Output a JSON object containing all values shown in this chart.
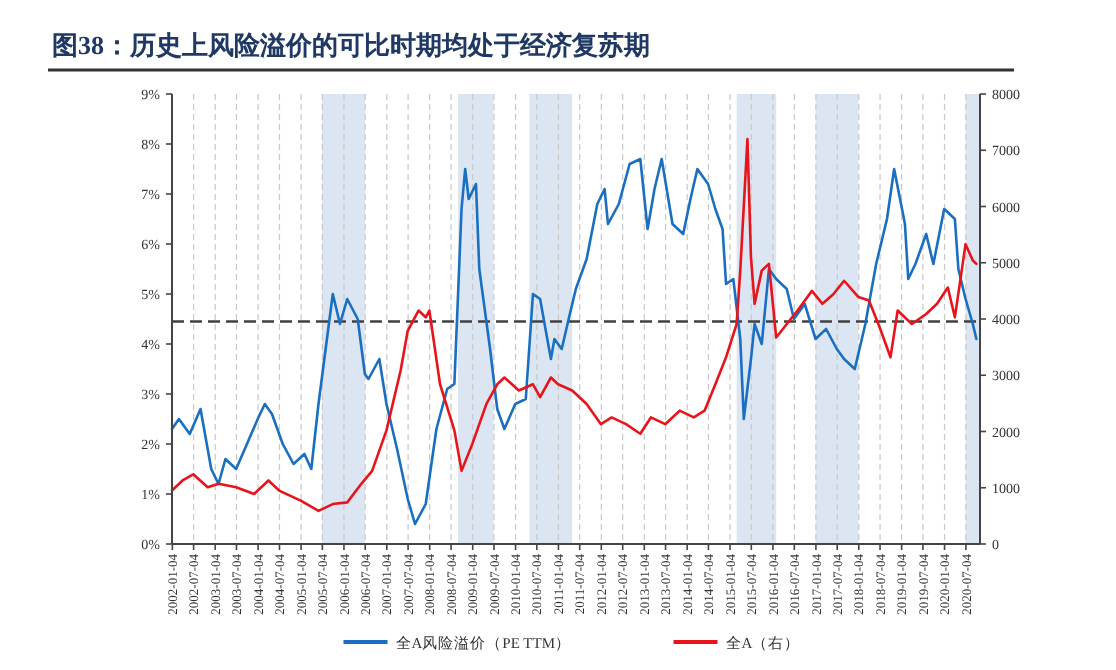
{
  "chart_data": {
    "type": "line",
    "title": "图38：历史上风险溢价的可比时期均处于经济复苏期",
    "xlim": [
      "2002-01-01",
      "2020-11-01"
    ],
    "xticks": [
      "2002-01-04",
      "2002-07-04",
      "2003-01-04",
      "2003-07-04",
      "2004-01-04",
      "2004-07-04",
      "2005-01-04",
      "2005-07-04",
      "2006-01-04",
      "2006-07-04",
      "2007-01-04",
      "2007-07-04",
      "2008-01-04",
      "2008-07-04",
      "2009-01-04",
      "2009-07-04",
      "2010-01-04",
      "2010-07-04",
      "2011-01-04",
      "2011-07-04",
      "2012-01-04",
      "2012-07-04",
      "2013-01-04",
      "2013-07-04",
      "2014-01-04",
      "2014-07-04",
      "2015-01-04",
      "2015-07-04",
      "2016-01-04",
      "2016-07-04",
      "2017-01-04",
      "2017-07-04",
      "2018-01-04",
      "2018-07-04",
      "2019-01-04",
      "2019-07-04",
      "2020-01-04",
      "2020-07-04"
    ],
    "ylim": [
      0,
      9
    ],
    "yticks": [
      {
        "value": 0,
        "label": "0%"
      },
      {
        "value": 1,
        "label": "1%"
      },
      {
        "value": 2,
        "label": "2%"
      },
      {
        "value": 3,
        "label": "3%"
      },
      {
        "value": 4,
        "label": "4%"
      },
      {
        "value": 5,
        "label": "5%"
      },
      {
        "value": 6,
        "label": "6%"
      },
      {
        "value": 7,
        "label": "7%"
      },
      {
        "value": 8,
        "label": "8%"
      },
      {
        "value": 9,
        "label": "9%"
      }
    ],
    "y2lim": [
      0,
      8000
    ],
    "y2ticks": [
      0,
      1000,
      2000,
      3000,
      4000,
      5000,
      6000,
      7000,
      8000
    ],
    "grid": "x",
    "legend": "bottom",
    "bands": [
      {
        "axis": "x",
        "from": "2005-07",
        "to": "2006-07",
        "color": "#dce6f2"
      },
      {
        "axis": "x",
        "from": "2008-09",
        "to": "2009-07",
        "color": "#dce6f2"
      },
      {
        "axis": "x",
        "from": "2010-05",
        "to": "2011-05",
        "color": "#dce6f2"
      },
      {
        "axis": "x",
        "from": "2015-03",
        "to": "2016-02",
        "color": "#dce6f2"
      },
      {
        "axis": "x",
        "from": "2017-01",
        "to": "2018-01",
        "color": "#dce6f2"
      },
      {
        "axis": "x",
        "from": "2020-07",
        "to": "2020-11",
        "color": "#dce6f2"
      }
    ],
    "ref_lines": [
      {
        "axis": "y",
        "value": 4.45,
        "color": "#404040",
        "line_style": "dashed"
      }
    ],
    "series": [
      {
        "name": "全A风险溢价（PE TTM）",
        "color": "#1a6fc0",
        "x": [
          "2002-01",
          "2002-03",
          "2002-06",
          "2002-09",
          "2002-12",
          "2003-02",
          "2003-04",
          "2003-07",
          "2003-10",
          "2004-01",
          "2004-03",
          "2004-05",
          "2004-08",
          "2004-11",
          "2005-02",
          "2005-04",
          "2005-06",
          "2005-08",
          "2005-10",
          "2005-12",
          "2006-02",
          "2006-05",
          "2006-07",
          "2006-08",
          "2006-11",
          "2007-01",
          "2007-04",
          "2007-07",
          "2007-09",
          "2007-12",
          "2008-03",
          "2008-06",
          "2008-08",
          "2008-10",
          "2008-11",
          "2008-12",
          "2009-02",
          "2009-03",
          "2009-06",
          "2009-08",
          "2009-10",
          "2010-01",
          "2010-04",
          "2010-06",
          "2010-08",
          "2010-10",
          "2010-11",
          "2010-12",
          "2011-02",
          "2011-04",
          "2011-06",
          "2011-09",
          "2011-12",
          "2012-02",
          "2012-03",
          "2012-06",
          "2012-09",
          "2012-12",
          "2013-02",
          "2013-04",
          "2013-06",
          "2013-09",
          "2013-12",
          "2014-02",
          "2014-04",
          "2014-07",
          "2014-09",
          "2014-11",
          "2014-12",
          "2015-02",
          "2015-04",
          "2015-05",
          "2015-07",
          "2015-08",
          "2015-10",
          "2015-12",
          "2016-02",
          "2016-05",
          "2016-07",
          "2016-10",
          "2017-01",
          "2017-04",
          "2017-07",
          "2017-09",
          "2017-12",
          "2018-03",
          "2018-06",
          "2018-09",
          "2018-11",
          "2019-02",
          "2019-03",
          "2019-05",
          "2019-08",
          "2019-10",
          "2020-01",
          "2020-04",
          "2020-05",
          "2020-07",
          "2020-09",
          "2020-10"
        ],
        "values": [
          2.3,
          2.5,
          2.2,
          2.7,
          1.5,
          1.2,
          1.7,
          1.5,
          2.0,
          2.5,
          2.8,
          2.6,
          2.0,
          1.6,
          1.8,
          1.5,
          2.8,
          3.9,
          5.0,
          4.4,
          4.9,
          4.5,
          3.4,
          3.3,
          3.7,
          2.8,
          1.9,
          0.9,
          0.4,
          0.8,
          2.3,
          3.1,
          3.2,
          6.7,
          7.5,
          6.9,
          7.2,
          5.5,
          3.9,
          2.7,
          2.3,
          2.8,
          2.9,
          5.0,
          4.9,
          4.1,
          3.7,
          4.1,
          3.9,
          4.5,
          5.1,
          5.7,
          6.8,
          7.1,
          6.4,
          6.8,
          7.6,
          7.7,
          6.3,
          7.1,
          7.7,
          6.4,
          6.2,
          6.9,
          7.5,
          7.2,
          6.7,
          6.3,
          5.2,
          5.3,
          4.1,
          2.5,
          3.7,
          4.4,
          4.0,
          5.5,
          5.3,
          5.1,
          4.5,
          4.8,
          4.1,
          4.3,
          3.9,
          3.7,
          3.5,
          4.4,
          5.6,
          6.5,
          7.5,
          6.4,
          5.3,
          5.6,
          6.2,
          5.6,
          6.7,
          6.5,
          5.5,
          4.9,
          4.4,
          4.1
        ]
      },
      {
        "name": "全A（右）",
        "color": "#e8141b",
        "axis": "y2",
        "x": [
          "2002-01",
          "2002-04",
          "2002-07",
          "2002-11",
          "2003-02",
          "2003-07",
          "2003-12",
          "2004-04",
          "2004-07",
          "2005-01",
          "2005-06",
          "2005-10",
          "2006-02",
          "2006-06",
          "2006-09",
          "2007-01",
          "2007-05",
          "2007-07",
          "2007-10",
          "2007-12",
          "2008-01",
          "2008-04",
          "2008-08",
          "2008-10",
          "2009-01",
          "2009-05",
          "2009-08",
          "2009-10",
          "2010-02",
          "2010-06",
          "2010-08",
          "2010-11",
          "2011-01",
          "2011-05",
          "2011-09",
          "2012-01",
          "2012-04",
          "2012-08",
          "2012-12",
          "2013-03",
          "2013-07",
          "2013-11",
          "2014-03",
          "2014-06",
          "2014-09",
          "2014-12",
          "2015-03",
          "2015-04",
          "2015-06",
          "2015-07",
          "2015-08",
          "2015-10",
          "2015-12",
          "2016-02",
          "2016-05",
          "2016-08",
          "2016-12",
          "2017-03",
          "2017-06",
          "2017-09",
          "2018-01",
          "2018-04",
          "2018-07",
          "2018-10",
          "2018-12",
          "2019-04",
          "2019-08",
          "2019-11",
          "2020-02",
          "2020-04",
          "2020-07",
          "2020-09",
          "2020-10"
        ],
        "values": [
          950,
          1130,
          1240,
          1010,
          1070,
          1010,
          890,
          1130,
          950,
          770,
          590,
          710,
          740,
          1070,
          1300,
          2020,
          3080,
          3790,
          4150,
          4030,
          4150,
          2840,
          2020,
          1300,
          1780,
          2490,
          2840,
          2960,
          2730,
          2840,
          2610,
          2960,
          2840,
          2730,
          2490,
          2130,
          2250,
          2130,
          1960,
          2250,
          2130,
          2370,
          2250,
          2370,
          2840,
          3320,
          3910,
          4860,
          7200,
          5100,
          4270,
          4860,
          4980,
          3670,
          3910,
          4150,
          4500,
          4270,
          4440,
          4680,
          4390,
          4330,
          3850,
          3320,
          4150,
          3910,
          4090,
          4270,
          4560,
          4030,
          5330,
          5040,
          4980
        ]
      }
    ]
  }
}
